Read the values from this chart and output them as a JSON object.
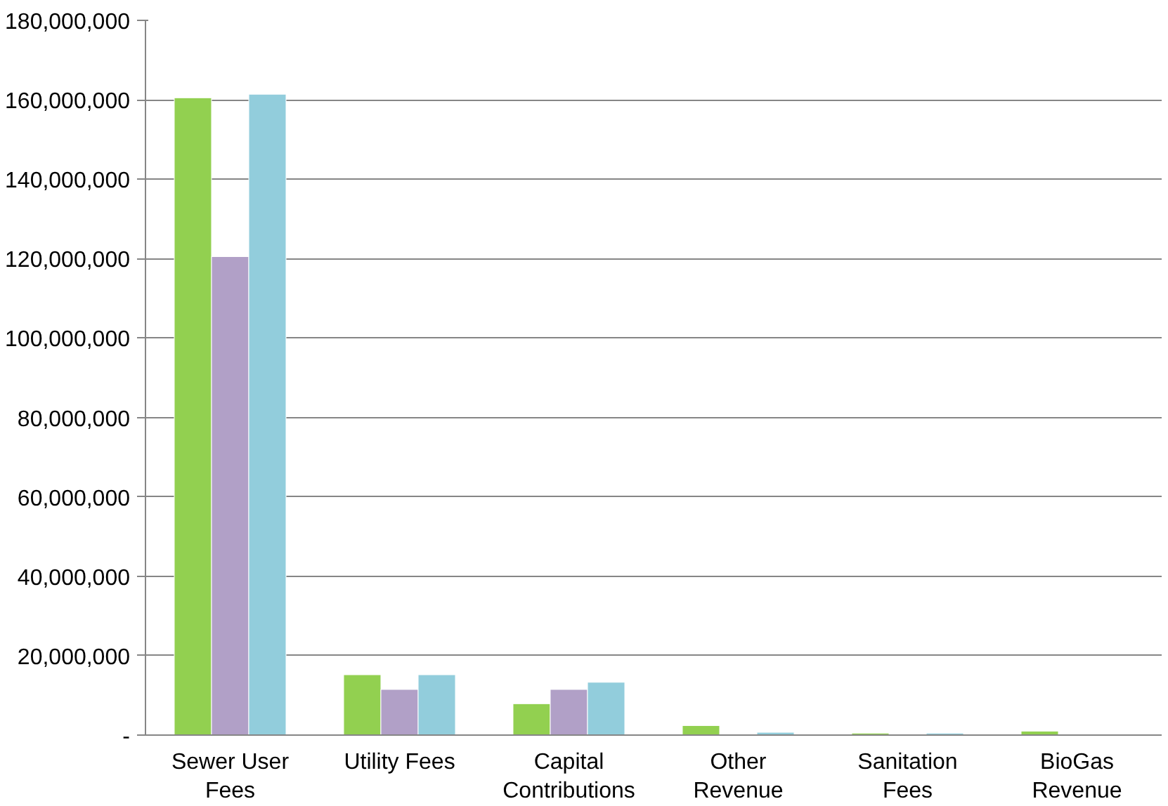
{
  "chart_data": {
    "type": "bar",
    "categories": [
      "Sewer User Fees",
      "Utility Fees",
      "Capital Contributions",
      "Other Revenue",
      "Sanitation Fees",
      "BioGas Revenue"
    ],
    "series": [
      {
        "color": "#92d050",
        "values": [
          160500000,
          15200000,
          7900000,
          2400000,
          500000,
          1000000
        ]
      },
      {
        "color": "#b1a0c7",
        "values": [
          120500000,
          11500000,
          11500000,
          null,
          null,
          null
        ]
      },
      {
        "color": "#92cddc",
        "values": [
          161400000,
          15200000,
          13300000,
          700000,
          500000,
          null
        ]
      }
    ],
    "ylim": [
      0,
      180000000
    ],
    "yticks": [
      {
        "value": 0,
        "label": "-"
      },
      {
        "value": 20000000,
        "label": "20,000,000"
      },
      {
        "value": 40000000,
        "label": "40,000,000"
      },
      {
        "value": 60000000,
        "label": "60,000,000"
      },
      {
        "value": 80000000,
        "label": "80,000,000"
      },
      {
        "value": 100000000,
        "label": "100,000,000"
      },
      {
        "value": 120000000,
        "label": "120,000,000"
      },
      {
        "value": 140000000,
        "label": "140,000,000"
      },
      {
        "value": 160000000,
        "label": "160,000,000"
      },
      {
        "value": 180000000,
        "label": "180,000,000"
      }
    ],
    "grid": "y"
  }
}
